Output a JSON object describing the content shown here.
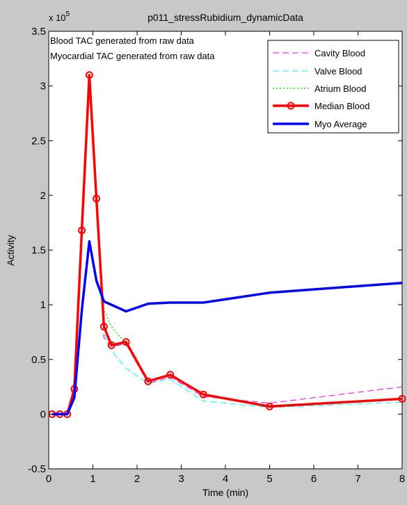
{
  "window": {
    "title": "p011_stressRubidium_dynamicData"
  },
  "chart_data": {
    "type": "line",
    "title": "p011_stressRubidium_dynamicData",
    "xlabel": "Time (min)",
    "ylabel": "Activity",
    "xlim": [
      0,
      8
    ],
    "ylim": [
      -0.5,
      3.5
    ],
    "y_exponent_label": "x 10",
    "y_exponent_power": "5",
    "x_ticks": [
      0,
      1,
      2,
      3,
      4,
      5,
      6,
      7,
      8
    ],
    "x_tick_labels": [
      "0",
      "1",
      "2",
      "3",
      "4",
      "5",
      "6",
      "7",
      "8"
    ],
    "y_ticks": [
      -0.5,
      0,
      0.5,
      1,
      1.5,
      2,
      2.5,
      3,
      3.5
    ],
    "y_tick_labels": [
      "-0.5",
      "0",
      "0.5",
      "1",
      "1.5",
      "2",
      "2.5",
      "3",
      "3.5"
    ],
    "annotations": [
      "Blood TAC generated from raw data",
      "Myocardial TAC generated from raw data"
    ],
    "legend_position": "top-right",
    "grid": false,
    "series": [
      {
        "name": "Cavity Blood",
        "color": "#ff00ff",
        "style": "dashed",
        "x": [
          0.08,
          0.25,
          0.42,
          0.58,
          0.75,
          0.92,
          1.08,
          1.25,
          1.42,
          1.75,
          2.25,
          2.75,
          3.5,
          5,
          8
        ],
        "y": [
          0,
          0,
          0,
          0.2,
          1.6,
          3.05,
          1.92,
          0.7,
          0.62,
          0.64,
          0.28,
          0.34,
          0.16,
          0.1,
          0.25
        ]
      },
      {
        "name": "Valve Blood",
        "color": "#00ffff",
        "style": "dashed",
        "x": [
          0.08,
          0.25,
          0.42,
          0.58,
          0.75,
          0.92,
          1.08,
          1.25,
          1.42,
          1.75,
          2.25,
          2.75,
          3.5,
          5,
          8
        ],
        "y": [
          0,
          0,
          0,
          0.2,
          1.6,
          3.0,
          1.9,
          0.75,
          0.58,
          0.42,
          0.28,
          0.32,
          0.12,
          0.06,
          0.11
        ]
      },
      {
        "name": "Atrium Blood",
        "color": "#00cc00",
        "style": "dotted",
        "x": [
          0.08,
          0.25,
          0.42,
          0.58,
          0.75,
          0.92,
          1.08,
          1.25,
          1.42,
          1.75,
          2.25,
          2.75,
          3.5,
          5,
          8
        ],
        "y": [
          0,
          0,
          0,
          0.24,
          1.65,
          3.08,
          1.95,
          0.95,
          0.8,
          0.64,
          0.3,
          0.36,
          0.18,
          0.08,
          0.14
        ]
      },
      {
        "name": "Median Blood",
        "color": "#ff0000",
        "style": "solid-circle",
        "x": [
          0.08,
          0.25,
          0.42,
          0.58,
          0.75,
          0.92,
          1.08,
          1.25,
          1.42,
          1.75,
          2.25,
          2.75,
          3.5,
          5,
          8
        ],
        "y": [
          0,
          0,
          0,
          0.23,
          1.68,
          3.1,
          1.97,
          0.8,
          0.63,
          0.66,
          0.3,
          0.36,
          0.18,
          0.07,
          0.14
        ]
      },
      {
        "name": "Myo Average",
        "color": "#0000ff",
        "style": "solid",
        "x": [
          0.08,
          0.25,
          0.42,
          0.58,
          0.75,
          0.92,
          1.08,
          1.25,
          1.42,
          1.75,
          2.25,
          2.75,
          3.5,
          5,
          8
        ],
        "y": [
          0,
          0,
          0,
          0.15,
          0.95,
          1.58,
          1.22,
          1.03,
          1.0,
          0.94,
          1.01,
          1.02,
          1.02,
          1.11,
          1.2
        ]
      }
    ]
  }
}
